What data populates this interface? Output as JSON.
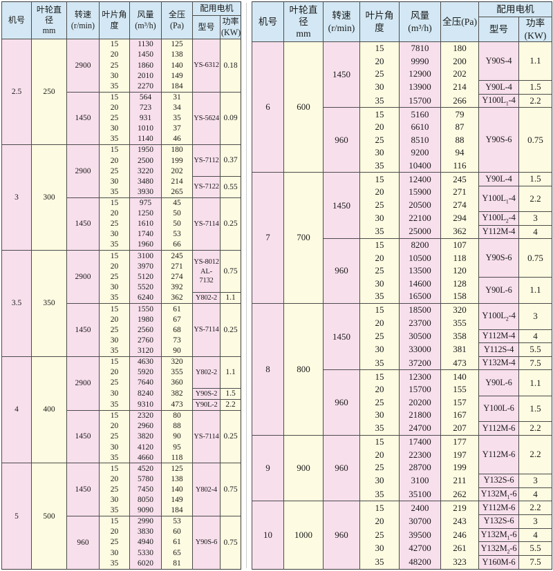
{
  "colors": {
    "header_bg": "#d3e8f4",
    "pink_column": "#f8dfec",
    "cream_column": "#fdfbe1",
    "border": "#4a4a4a"
  },
  "header": {
    "machine": "机号",
    "diameter": "叶轮直径\nmm",
    "speed": "转速\n(r/min)",
    "angle": "叶片角度",
    "volume": "风量\n(m³/h)",
    "pressure": "全压(Pa)",
    "motor": "配用电机",
    "model": "型号",
    "power": "功率\n(KW)"
  },
  "left_table": {
    "sections": [
      {
        "machine": "2.5",
        "diameter": "250",
        "groups": [
          {
            "speed": "2900",
            "rows": [
              [
                "15",
                "1130",
                "125"
              ],
              [
                "20",
                "1450",
                "138"
              ],
              [
                "25",
                "1860",
                "140"
              ],
              [
                "30",
                "2010",
                "149"
              ],
              [
                "35",
                "2270",
                "184"
              ]
            ],
            "motors": [
              {
                "model": "YS-6312",
                "power": "0.18",
                "span": 5
              }
            ]
          },
          {
            "speed": "1450",
            "rows": [
              [
                "15",
                "564",
                "31"
              ],
              [
                "20",
                "723",
                "34"
              ],
              [
                "25",
                "931",
                "35"
              ],
              [
                "30",
                "1010",
                "37"
              ],
              [
                "35",
                "1140",
                "46"
              ]
            ],
            "motors": [
              {
                "model": "YS-5624",
                "power": "0.09",
                "span": 5
              }
            ]
          }
        ]
      },
      {
        "machine": "3",
        "diameter": "300",
        "groups": [
          {
            "speed": "2900",
            "rows": [
              [
                "15",
                "1950",
                "180"
              ],
              [
                "20",
                "2500",
                "199"
              ],
              [
                "25",
                "3220",
                "202"
              ],
              [
                "30",
                "3480",
                "214"
              ],
              [
                "35",
                "3930",
                "265"
              ]
            ],
            "motors": [
              {
                "model": "YS-7112",
                "power": "0.37",
                "span": 3
              },
              {
                "model": "YS-7122",
                "power": "0.55",
                "span": 2
              }
            ]
          },
          {
            "speed": "1450",
            "rows": [
              [
                "15",
                "975",
                "45"
              ],
              [
                "20",
                "1250",
                "50"
              ],
              [
                "25",
                "1610",
                "50"
              ],
              [
                "30",
                "1740",
                "53"
              ],
              [
                "35",
                "1960",
                "66"
              ]
            ],
            "motors": [
              {
                "model": "YS-7114",
                "power": "0.25",
                "span": 5
              }
            ]
          }
        ]
      },
      {
        "machine": "3.5",
        "diameter": "350",
        "groups": [
          {
            "speed": "2900",
            "rows": [
              [
                "15",
                "3100",
                "245"
              ],
              [
                "20",
                "3970",
                "271"
              ],
              [
                "25",
                "5120",
                "274"
              ],
              [
                "30",
                "5520",
                "392"
              ],
              [
                "35",
                "6240",
                "362"
              ]
            ],
            "motors": [
              {
                "model": "YS-8012\nAL-7132",
                "power": "0.75",
                "span": 4
              },
              {
                "model": "Y802-2",
                "power": "1.1",
                "span": 1
              }
            ]
          },
          {
            "speed": "1450",
            "rows": [
              [
                "15",
                "1550",
                "61"
              ],
              [
                "20",
                "1980",
                "67"
              ],
              [
                "25",
                "2560",
                "68"
              ],
              [
                "30",
                "2760",
                "73"
              ],
              [
                "35",
                "3120",
                "90"
              ]
            ],
            "motors": [
              {
                "model": "YS-7114",
                "power": "0.25",
                "span": 5
              }
            ]
          }
        ]
      },
      {
        "machine": "4",
        "diameter": "400",
        "groups": [
          {
            "speed": "2900",
            "rows": [
              [
                "15",
                "4630",
                "320"
              ],
              [
                "20",
                "5920",
                "355"
              ],
              [
                "25",
                "7640",
                "360"
              ],
              [
                "30",
                "8240",
                "382"
              ],
              [
                "35",
                "9310",
                "473"
              ]
            ],
            "motors": [
              {
                "model": "Y802-2",
                "power": "1.1",
                "span": 3
              },
              {
                "model": "Y90S-2",
                "power": "1.5",
                "span": 1
              },
              {
                "model": "Y90L-2",
                "power": "2.2",
                "span": 1
              }
            ]
          },
          {
            "speed": "1450",
            "rows": [
              [
                "15",
                "2320",
                "80"
              ],
              [
                "20",
                "2960",
                "88"
              ],
              [
                "25",
                "3820",
                "90"
              ],
              [
                "30",
                "4120",
                "95"
              ],
              [
                "35",
                "4660",
                "118"
              ]
            ],
            "motors": [
              {
                "model": "YS-7114",
                "power": "0.25",
                "span": 5
              }
            ]
          }
        ]
      },
      {
        "machine": "5",
        "diameter": "500",
        "groups": [
          {
            "speed": "1450",
            "rows": [
              [
                "15",
                "4520",
                "125"
              ],
              [
                "20",
                "5780",
                "138"
              ],
              [
                "25",
                "7450",
                "140"
              ],
              [
                "30",
                "8050",
                "149"
              ],
              [
                "35",
                "9090",
                "184"
              ]
            ],
            "motors": [
              {
                "model": "Y802-4",
                "power": "0.75",
                "span": 5
              }
            ]
          },
          {
            "speed": "960",
            "rows": [
              [
                "15",
                "2990",
                "53"
              ],
              [
                "20",
                "3830",
                "60"
              ],
              [
                "25",
                "4940",
                "61"
              ],
              [
                "30",
                "5330",
                "65"
              ],
              [
                "35",
                "6020",
                "81"
              ]
            ],
            "motors": [
              {
                "model": "Y90S-6",
                "power": "0.75",
                "span": 5
              }
            ]
          }
        ]
      }
    ]
  },
  "right_table": {
    "sections": [
      {
        "machine": "6",
        "diameter": "600",
        "groups": [
          {
            "speed": "1450",
            "rows": [
              [
                "15",
                "7810",
                "180"
              ],
              [
                "20",
                "9990",
                "200"
              ],
              [
                "25",
                "12900",
                "202"
              ],
              [
                "30",
                "13900",
                "214"
              ],
              [
                "35",
                "15700",
                "266"
              ]
            ],
            "motors": [
              {
                "model": "Y90S-4",
                "power": "1.1",
                "span": 3
              },
              {
                "model": "Y90L-4",
                "power": "1.5",
                "span": 1
              },
              {
                "model": "Y100L₁-4",
                "power": "2.2",
                "span": 1
              }
            ]
          },
          {
            "speed": "960",
            "rows": [
              [
                "15",
                "5160",
                "79"
              ],
              [
                "20",
                "6610",
                "87"
              ],
              [
                "25",
                "8510",
                "88"
              ],
              [
                "30",
                "9200",
                "94"
              ],
              [
                "35",
                "10400",
                "116"
              ]
            ],
            "motors": [
              {
                "model": "Y90S-6",
                "power": "0.75",
                "span": 5
              }
            ]
          }
        ]
      },
      {
        "machine": "7",
        "diameter": "700",
        "groups": [
          {
            "speed": "1450",
            "rows": [
              [
                "15",
                "12400",
                "245"
              ],
              [
                "20",
                "15900",
                "271"
              ],
              [
                "25",
                "20500",
                "274"
              ],
              [
                "30",
                "22100",
                "294"
              ],
              [
                "35",
                "25000",
                "362"
              ]
            ],
            "motors": [
              {
                "model": "Y90L-4",
                "power": "1.5",
                "span": 1
              },
              {
                "model": "Y100L₁-4",
                "power": "2.2",
                "span": 2
              },
              {
                "model": "Y100L₂-4",
                "power": "3",
                "span": 1
              },
              {
                "model": "Y112M-4",
                "power": "4",
                "span": 1
              }
            ]
          },
          {
            "speed": "960",
            "rows": [
              [
                "15",
                "8200",
                "107"
              ],
              [
                "20",
                "10500",
                "118"
              ],
              [
                "25",
                "13500",
                "120"
              ],
              [
                "30",
                "14600",
                "128"
              ],
              [
                "35",
                "16500",
                "158"
              ]
            ],
            "motors": [
              {
                "model": "Y90S-6",
                "power": "0.75",
                "span": 3
              },
              {
                "model": "Y90L-6",
                "power": "1.1",
                "span": 2
              }
            ]
          }
        ]
      },
      {
        "machine": "8",
        "diameter": "800",
        "groups": [
          {
            "speed": "1450",
            "rows": [
              [
                "15",
                "18500",
                "320"
              ],
              [
                "20",
                "23700",
                "355"
              ],
              [
                "25",
                "30500",
                "358"
              ],
              [
                "30",
                "33000",
                "381"
              ],
              [
                "35",
                "37200",
                "473"
              ]
            ],
            "motors": [
              {
                "model": "Y100L₂-4",
                "power": "3",
                "span": 2
              },
              {
                "model": "Y112M-4",
                "power": "4",
                "span": 1
              },
              {
                "model": "Y112S-4",
                "power": "5.5",
                "span": 1
              },
              {
                "model": "Y132M-4",
                "power": "7.5",
                "span": 1
              }
            ]
          },
          {
            "speed": "960",
            "rows": [
              [
                "15",
                "12300",
                "140"
              ],
              [
                "20",
                "15700",
                "155"
              ],
              [
                "25",
                "20200",
                "157"
              ],
              [
                "30",
                "21800",
                "167"
              ],
              [
                "35",
                "24700",
                "207"
              ]
            ],
            "motors": [
              {
                "model": "Y90L-6",
                "power": "1.1",
                "span": 2
              },
              {
                "model": "Y100L-6",
                "power": "1.5",
                "span": 2
              },
              {
                "model": "Y112M-6",
                "power": "2.2",
                "span": 1
              }
            ]
          }
        ]
      },
      {
        "machine": "9",
        "diameter": "900",
        "groups": [
          {
            "speed": "960",
            "rows": [
              [
                "15",
                "17400",
                "177"
              ],
              [
                "20",
                "22300",
                "197"
              ],
              [
                "25",
                "28700",
                "199"
              ],
              [
                "30",
                "3100",
                "211"
              ],
              [
                "35",
                "35100",
                "262"
              ]
            ],
            "motors": [
              {
                "model": "Y112M-6",
                "power": "2.2",
                "span": 3
              },
              {
                "model": "Y132S-6",
                "power": "3",
                "span": 1
              },
              {
                "model": "Y132M₁-6",
                "power": "4",
                "span": 1
              }
            ]
          }
        ]
      },
      {
        "machine": "10",
        "diameter": "1000",
        "groups": [
          {
            "speed": "960",
            "rows": [
              [
                "15",
                "2400",
                "219"
              ],
              [
                "20",
                "30700",
                "243"
              ],
              [
                "25",
                "39500",
                "246"
              ],
              [
                "30",
                "42700",
                "261"
              ],
              [
                "35",
                "48200",
                "323"
              ]
            ],
            "motors": [
              {
                "model": "Y112M-6",
                "power": "2.2",
                "span": 1
              },
              {
                "model": "Y132S-6",
                "power": "3",
                "span": 1
              },
              {
                "model": "Y132M₁-6",
                "power": "4",
                "span": 1
              },
              {
                "model": "Y132M₂-6",
                "power": "5.5",
                "span": 1
              },
              {
                "model": "Y160M-6",
                "power": "7.5",
                "span": 1
              }
            ]
          }
        ]
      }
    ]
  }
}
